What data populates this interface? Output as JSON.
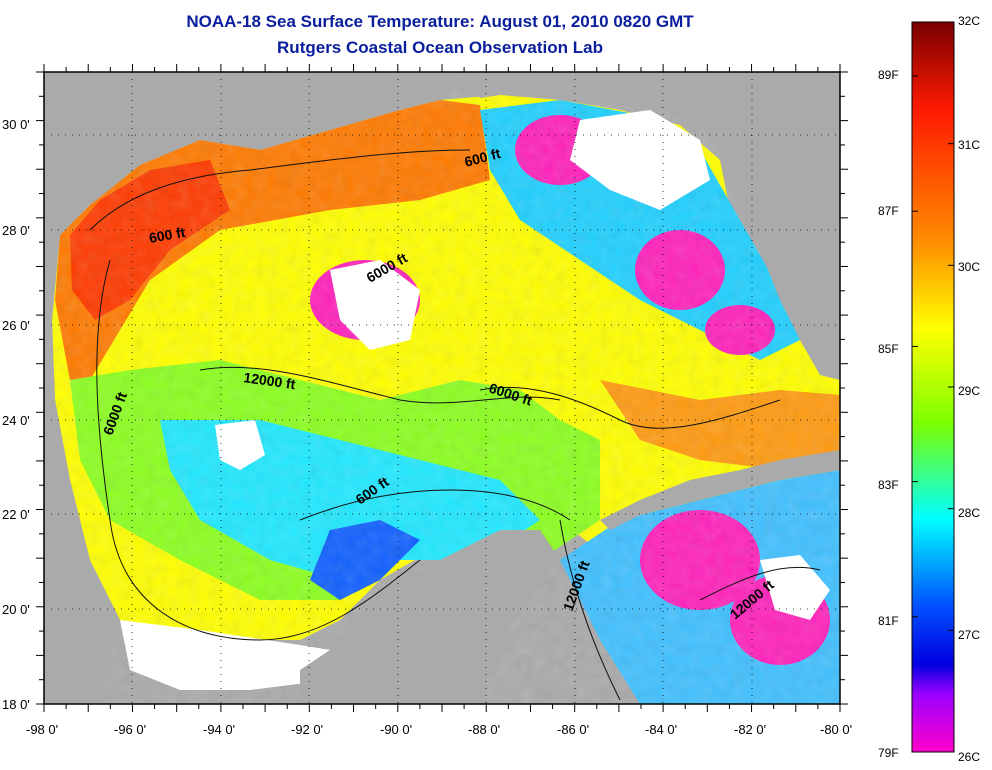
{
  "header": {
    "title": "NOAA-18 Sea Surface Temperature:  August 01, 2010 0820 GMT",
    "subtitle": "Rutgers Coastal Ocean Observation Lab"
  },
  "map": {
    "region": "Gulf of Mexico",
    "lon_range": [
      -98,
      -80
    ],
    "lat_range": [
      18,
      31
    ],
    "x_tick_labels": [
      "-98 0'",
      "-96 0'",
      "-94 0'",
      "-92 0'",
      "-90 0'",
      "-88 0'",
      "-86 0'",
      "-84 0'",
      "-82 0'",
      "-80 0'"
    ],
    "y_tick_labels": [
      "18 0'",
      "20 0'",
      "22 0'",
      "24 0'",
      "26 0'",
      "28 0'",
      "30 0'"
    ],
    "contour_labels": [
      "600 ft",
      "600 ft",
      "600 ft",
      "6000 ft",
      "6000 ft",
      "6000 ft",
      "12000 ft",
      "12000 ft",
      "12000 ft"
    ],
    "colors": {
      "land": "#aaaaaa",
      "cloud": "#ffffff",
      "frame": "#000000"
    }
  },
  "colorbar": {
    "left_labels": [
      "89F",
      "87F",
      "85F",
      "83F",
      "81F",
      "79F"
    ],
    "right_labels": [
      "32C",
      "31C",
      "30C",
      "29C",
      "28C",
      "27C",
      "26C"
    ],
    "range_c": [
      26,
      32
    ],
    "range_f": [
      79,
      89.6
    ],
    "stops": [
      "#7a0000",
      "#ff1a00",
      "#ff8c00",
      "#ffff00",
      "#7cff00",
      "#00ffff",
      "#0050ff",
      "#0000e0",
      "#9900ff",
      "#ff00cc"
    ]
  }
}
